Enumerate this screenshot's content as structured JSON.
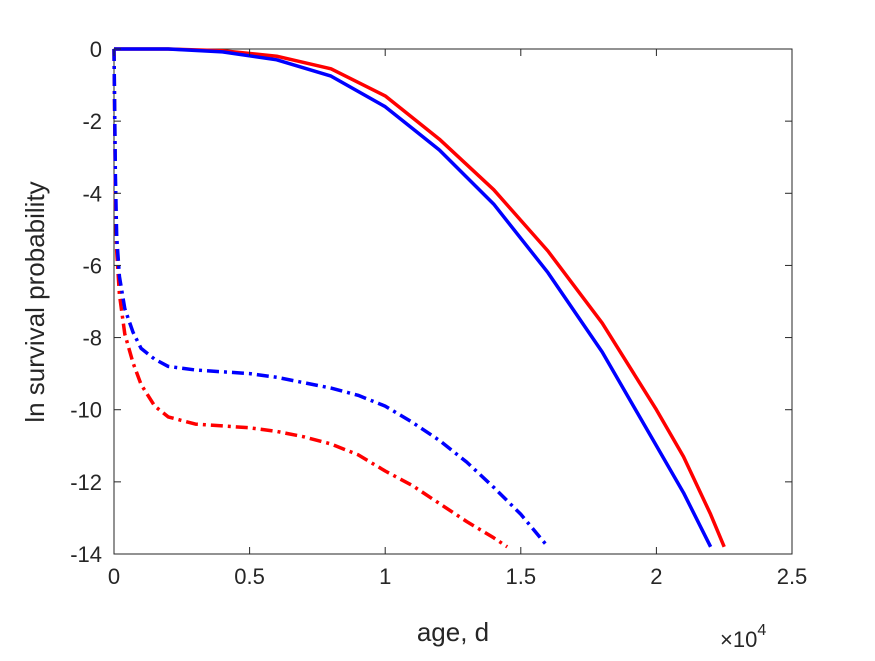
{
  "chart_data": {
    "type": "line",
    "title": "",
    "xlabel": "age, d",
    "ylabel": "ln survival probability",
    "x_exponent_label": "×10",
    "x_exponent_power": "4",
    "xlim": [
      0,
      25000
    ],
    "ylim": [
      -14,
      0
    ],
    "xticks": [
      0,
      5000,
      10000,
      15000,
      20000,
      25000
    ],
    "xtick_labels": [
      "0",
      "0.5",
      "1",
      "1.5",
      "2",
      "2.5"
    ],
    "yticks": [
      0,
      -2,
      -4,
      -6,
      -8,
      -10,
      -12,
      -14
    ],
    "ytick_labels": [
      "0",
      "-2",
      "-4",
      "-6",
      "-8",
      "-10",
      "-12",
      "-14"
    ],
    "grid": false,
    "legend": "none",
    "series": [
      {
        "color": "#ff0000",
        "line_style": "solid",
        "x": [
          0,
          2000,
          4000,
          6000,
          8000,
          10000,
          12000,
          14000,
          16000,
          18000,
          20000,
          21000,
          22000,
          22500
        ],
        "y": [
          0,
          0,
          -0.05,
          -0.2,
          -0.55,
          -1.3,
          -2.5,
          -3.9,
          -5.6,
          -7.6,
          -10.0,
          -11.3,
          -12.9,
          -13.8
        ]
      },
      {
        "color": "#0000ff",
        "line_style": "solid",
        "x": [
          0,
          2000,
          4000,
          6000,
          8000,
          10000,
          12000,
          14000,
          16000,
          18000,
          20000,
          21000,
          22000
        ],
        "y": [
          0,
          0,
          -0.08,
          -0.3,
          -0.75,
          -1.6,
          -2.8,
          -4.3,
          -6.2,
          -8.4,
          -11.0,
          -12.3,
          -13.8
        ]
      },
      {
        "color": "#ff0000",
        "line_style": "dash-dot",
        "x": [
          0,
          50,
          100,
          200,
          400,
          700,
          1000,
          1500,
          2000,
          3000,
          4000,
          5000,
          6000,
          7000,
          8000,
          9000,
          10000,
          11000,
          12000,
          13000,
          14000,
          14500
        ],
        "y": [
          0,
          -4.0,
          -5.6,
          -6.8,
          -7.9,
          -8.7,
          -9.3,
          -9.9,
          -10.2,
          -10.4,
          -10.45,
          -10.5,
          -10.6,
          -10.75,
          -10.95,
          -11.25,
          -11.7,
          -12.1,
          -12.6,
          -13.1,
          -13.55,
          -13.8
        ]
      },
      {
        "color": "#0000ff",
        "line_style": "dash-dot",
        "x": [
          0,
          50,
          100,
          200,
          400,
          700,
          1000,
          1500,
          2000,
          3000,
          4000,
          5000,
          6000,
          7000,
          8000,
          9000,
          10000,
          11000,
          12000,
          13000,
          14000,
          15000,
          16000
        ],
        "y": [
          0,
          -3.5,
          -5.2,
          -6.3,
          -7.2,
          -7.85,
          -8.3,
          -8.6,
          -8.8,
          -8.9,
          -8.95,
          -9.0,
          -9.1,
          -9.25,
          -9.4,
          -9.6,
          -9.9,
          -10.35,
          -10.85,
          -11.45,
          -12.15,
          -12.9,
          -13.8
        ]
      }
    ]
  }
}
